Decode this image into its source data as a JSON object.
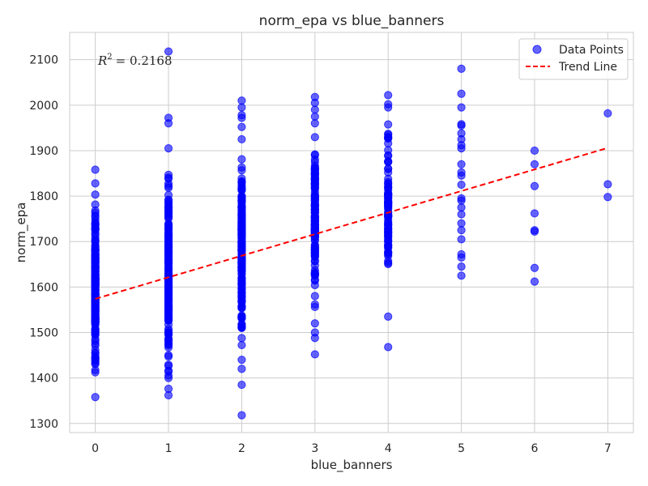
{
  "chart_data": {
    "type": "scatter",
    "title": "norm_epa vs blue_banners",
    "xlabel": "blue_banners",
    "ylabel": "norm_epa",
    "xlim": [
      -0.35,
      7.35
    ],
    "ylim": [
      1280,
      2160
    ],
    "x_ticks": [
      0,
      1,
      2,
      3,
      4,
      5,
      6,
      7
    ],
    "y_ticks": [
      1300,
      1400,
      1500,
      1600,
      1700,
      1800,
      1900,
      2000,
      2100
    ],
    "grid": true,
    "legend_position": "top-right",
    "annotation": {
      "symbol": "R",
      "exponent": "2",
      "text": "= 0.2168"
    },
    "series": [
      {
        "name": "Data Points",
        "kind": "scatter",
        "color": "#0000ff",
        "points_by_x": [
          {
            "x": 0,
            "y_min": 1358,
            "y_max": 1828,
            "count": 220,
            "outliers": [
              1858
            ]
          },
          {
            "x": 1,
            "y_min": 1362,
            "y_max": 1905,
            "count": 240,
            "outliers": [
              1972,
              1960,
              2118
            ]
          },
          {
            "x": 2,
            "y_min": 1440,
            "y_max": 1925,
            "count": 210,
            "outliers": [
              1420,
              1385,
              1318,
              1952,
              1972,
              1978,
              1995,
              2010
            ]
          },
          {
            "x": 3,
            "y_min": 1520,
            "y_max": 1960,
            "count": 150,
            "outliers": [
              1500,
              1488,
              1452,
              1975,
              1990,
              2005,
              2018
            ]
          },
          {
            "x": 4,
            "y_min": 1535,
            "y_max": 1995,
            "count": 90,
            "outliers": [
              1468,
              2002,
              2022
            ]
          },
          {
            "x": 5,
            "y": [
              1625,
              1645,
              1665,
              1672,
              1705,
              1725,
              1740,
              1760,
              1775,
              1790,
              1795,
              1825,
              1845,
              1852,
              1870,
              1905,
              1912,
              1925,
              1938,
              1955,
              1958,
              1995,
              2025,
              2080
            ]
          },
          {
            "x": 6,
            "y": [
              1612,
              1642,
              1722,
              1725,
              1762,
              1822,
              1870,
              1900
            ]
          },
          {
            "x": 7,
            "y": [
              1798,
              1826,
              1982
            ]
          }
        ]
      },
      {
        "name": "Trend Line",
        "kind": "line",
        "color": "#ff0000",
        "style": "dashed",
        "x": [
          0,
          7
        ],
        "y": [
          1574,
          1906
        ]
      }
    ]
  }
}
